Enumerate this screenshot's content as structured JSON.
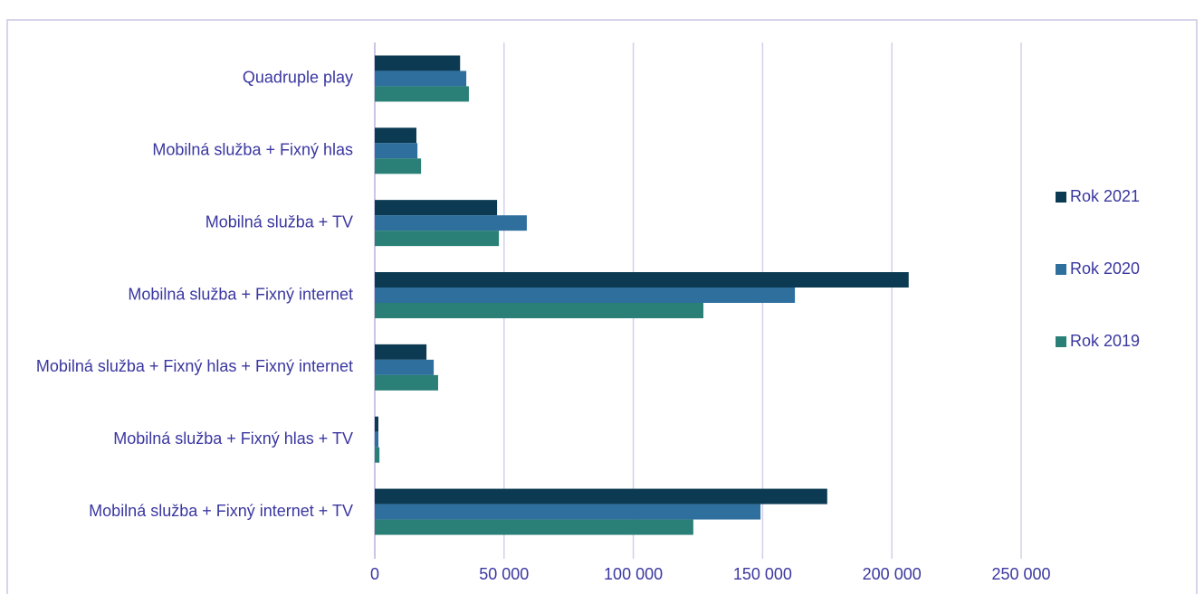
{
  "chart_data": {
    "type": "hbar",
    "categories": [
      "Quadruple play",
      "Mobilná služba + Fixný hlas",
      "Mobilná služba + TV",
      "Mobilná služba + Fixný internet",
      "Mobilná služba + Fixný hlas + Fixný internet",
      "Mobilná služba + Fixný hlas + TV",
      "Mobilná služba + Fixný internet + TV"
    ],
    "series": [
      {
        "name": "Rok 2021",
        "color": "#0b3a52",
        "values": [
          33000,
          16100,
          47300,
          206500,
          20000,
          1400,
          175000
        ]
      },
      {
        "name": "Rok 2020",
        "color": "#2e6f9e",
        "values": [
          35400,
          16500,
          58800,
          162500,
          22800,
          1400,
          149200
        ]
      },
      {
        "name": "Rok 2019",
        "color": "#2a8077",
        "values": [
          36400,
          17900,
          48000,
          127100,
          24500,
          1800,
          123200
        ]
      }
    ],
    "xlim": [
      0,
      250000
    ],
    "xticks": [
      0,
      {
        "value": 50000,
        "label": "50 000"
      },
      {
        "value": 100000,
        "label": "100 000"
      },
      {
        "value": 150000,
        "label": "150 000"
      },
      {
        "value": 200000,
        "label": "200 000"
      },
      {
        "value": 250000,
        "label": "250 000"
      }
    ],
    "grid": true,
    "legend": "right"
  }
}
